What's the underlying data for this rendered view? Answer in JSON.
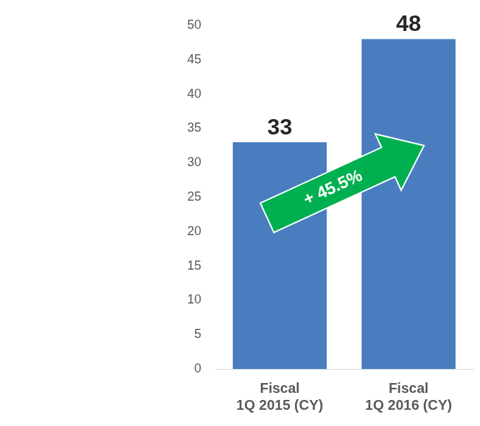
{
  "chart_data": {
    "type": "bar",
    "categories": [
      "Fiscal 1Q 2015 (CY)",
      "Fiscal 1Q 2016 (CY)"
    ],
    "values": [
      33,
      48
    ],
    "color": "#4a7dbf",
    "ylim": [
      0,
      50
    ],
    "yticks": [
      0,
      5,
      10,
      15,
      20,
      25,
      30,
      35,
      40,
      45,
      50
    ],
    "grid": false,
    "data_labels": true,
    "annotations": [
      "+ 45.5%"
    ]
  }
}
